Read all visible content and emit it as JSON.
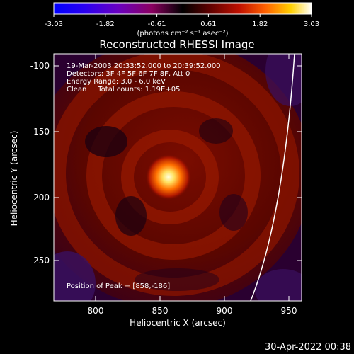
{
  "colorbar": {
    "tick_labels": [
      "-3.03",
      "-1.82",
      "-0.61",
      "0.61",
      "1.82",
      "3.03"
    ],
    "unit_label": "(photons cm⁻² s⁻¹ asec⁻²)"
  },
  "plot": {
    "title": "Reconstructed RHESSI Image",
    "info_lines": [
      "19-Mar-2003 20:33:52.000 to 20:39:52.000",
      "Detectors: 3F 4F 5F 6F 7F 8F, Att 0",
      "Energy Range: 3.0 - 6.0 keV",
      "Clean     Total counts: 1.19E+05"
    ],
    "peak_label": "Position of Peak = [858,-186]",
    "xlabel": "Heliocentric X (arcsec)",
    "ylabel": "Heliocentric Y (arcsec)",
    "x_ticks": [
      "800",
      "850",
      "900",
      "950"
    ],
    "y_ticks": [
      "-100",
      "-150",
      "-200",
      "-250"
    ]
  },
  "footer": {
    "timestamp": "30-Apr-2022 00:38"
  },
  "colors": {
    "background": "#000000",
    "foreground": "#ffffff"
  }
}
